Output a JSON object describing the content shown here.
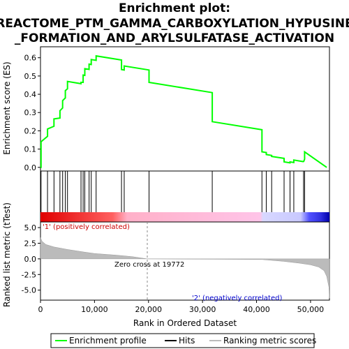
{
  "title_line1": "Enrichment plot:",
  "title_line2": "REACTOME_PTM_GAMMA_CARBOXYLATION_HYPUSINE",
  "title_line3": "_FORMATION_AND_ARYLSULFATASE_ACTIVATION",
  "chart_data": {
    "type": "line",
    "x_max": 53500,
    "es_panel": {
      "ylabel": "Enrichment score (ES)",
      "ylim": [
        -0.02,
        0.66
      ],
      "yticks": [
        0.0,
        0.1,
        0.2,
        0.3,
        0.4,
        0.5,
        0.6
      ],
      "ytick_labels": [
        "0.0",
        "0.1",
        "0.2",
        "0.3",
        "0.4",
        "0.5",
        "0.6"
      ],
      "series_name": "Enrichment profile",
      "color": "#00ff00",
      "hits": [
        100,
        1300,
        2500,
        3600,
        4100,
        4600,
        5000,
        7500,
        7900,
        8200,
        9000,
        9400,
        10300,
        15000,
        15500,
        20100,
        31800,
        41000,
        41800,
        42800,
        45100,
        46200,
        46900,
        48700,
        48900
      ],
      "peaks": [
        0.14,
        0.21,
        0.265,
        0.31,
        0.365,
        0.42,
        0.47,
        0.465,
        0.505,
        0.54,
        0.565,
        0.59,
        0.61,
        0.535,
        0.555,
        0.465,
        0.25,
        0.085,
        0.07,
        0.06,
        0.03,
        0.03,
        0.04,
        0.03,
        0.085
      ]
    },
    "metric_panel": {
      "xlabel": "Rank in Ordered Dataset",
      "ylabel": "Ranked list metric (tTest)",
      "ylim": [
        -6.6,
        5.9
      ],
      "yticks": [
        5.0,
        2.5,
        0.0,
        -2.5,
        -5.0
      ],
      "ytick_labels": [
        "5.0",
        "2.5",
        "0.0",
        "-2.5",
        "-5.0"
      ],
      "xticks": [
        0,
        10000,
        20000,
        30000,
        40000,
        50000
      ],
      "xtick_labels": [
        "0",
        "10,000",
        "20,000",
        "30,000",
        "40,000",
        "50,000"
      ],
      "zero_cross": 19772,
      "zero_cross_label": "Zero cross at 19772",
      "pos_label": "'1' (positively correlated)",
      "neg_label": "'2' (negatively correlated)",
      "metric_profile": [
        [
          0,
          3.4
        ],
        [
          300,
          2.8
        ],
        [
          1000,
          2.3
        ],
        [
          2500,
          1.9
        ],
        [
          5000,
          1.5
        ],
        [
          8000,
          1.1
        ],
        [
          10000,
          0.85
        ],
        [
          14000,
          0.6
        ],
        [
          17000,
          0.35
        ],
        [
          19772,
          0.0
        ],
        [
          41000,
          -0.1
        ],
        [
          45000,
          -0.4
        ],
        [
          48000,
          -0.7
        ],
        [
          50000,
          -0.95
        ],
        [
          51500,
          -1.3
        ],
        [
          52500,
          -1.9
        ],
        [
          53000,
          -2.8
        ],
        [
          53400,
          -4.5
        ],
        [
          53500,
          -6.3
        ]
      ]
    },
    "legend": {
      "enrichment": "Enrichment profile",
      "hits": "Hits",
      "metric": "Ranking metric scores"
    },
    "colors": {
      "enrichment": "#00ff00",
      "metric_fill": "#bbbbbb",
      "pos_label": "#cc0000",
      "neg_label": "#0000cc"
    }
  }
}
